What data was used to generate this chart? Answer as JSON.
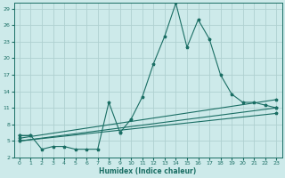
{
  "xlabel": "Humidex (Indice chaleur)",
  "bg_color": "#cdeaea",
  "grid_color": "#afd0d0",
  "line_color": "#1a6e64",
  "xlim": [
    -0.5,
    23.5
  ],
  "ylim": [
    2,
    30
  ],
  "yticks": [
    2,
    5,
    8,
    11,
    14,
    17,
    20,
    23,
    26,
    29
  ],
  "xticks": [
    0,
    1,
    2,
    3,
    4,
    5,
    6,
    7,
    8,
    9,
    10,
    11,
    12,
    13,
    14,
    15,
    16,
    17,
    18,
    19,
    20,
    21,
    22,
    23
  ],
  "series": [
    {
      "x": [
        0,
        1,
        2,
        3,
        4,
        5,
        6,
        7,
        8,
        9,
        10,
        11,
        12,
        13,
        14,
        15,
        16,
        17,
        18,
        19,
        20,
        21,
        22,
        23
      ],
      "y": [
        6,
        6,
        null,
        null,
        null,
        null,
        null,
        null,
        null,
        6.5,
        9,
        13,
        19,
        24,
        30,
        22,
        27,
        23.5,
        17,
        13.5,
        12,
        12,
        11.5,
        11
      ]
    },
    {
      "x": [
        0,
        1,
        2,
        3,
        4,
        5,
        6,
        7,
        8,
        9,
        10,
        11,
        12,
        13,
        14,
        15,
        16,
        17,
        18,
        19,
        20,
        21,
        22,
        23
      ],
      "y": [
        6,
        6,
        3.5,
        4,
        4,
        3.5,
        3.5,
        3.5,
        12,
        6.5,
        null,
        null,
        null,
        null,
        null,
        null,
        null,
        null,
        null,
        null,
        null,
        null,
        null,
        null
      ]
    },
    {
      "x": [
        0,
        23
      ],
      "y": [
        5.5,
        12.5
      ]
    },
    {
      "x": [
        0,
        23
      ],
      "y": [
        5.0,
        11.0
      ]
    },
    {
      "x": [
        0,
        23
      ],
      "y": [
        5.0,
        10.0
      ]
    }
  ]
}
